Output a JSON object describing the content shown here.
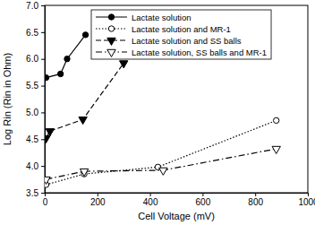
{
  "chart_data": {
    "type": "line",
    "x_label": "Cell Voltage (mV)",
    "y_label": "Log Rin (Rin in Ohm)",
    "xlim": [
      0,
      1000
    ],
    "xticks": [
      0,
      200,
      400,
      600,
      800,
      1000
    ],
    "ylim": [
      3.5,
      7.0
    ],
    "yticks": [
      3.5,
      {
        "value": 4,
        "label": "4.0"
      },
      4.5,
      {
        "value": 5,
        "label": "5.0"
      },
      5.5,
      {
        "value": 6,
        "label": "6.0"
      },
      6.5,
      {
        "value": 7,
        "label": "7.0"
      }
    ],
    "grid": false,
    "legend": "upper center",
    "series": [
      {
        "name": "Lactate solution",
        "color": "#000000",
        "marker": "circle",
        "line_style": "solid",
        "x": [
          5,
          60,
          85,
          155
        ],
        "values": [
          5.65,
          5.72,
          6.0,
          6.45
        ]
      },
      {
        "name": "Lactate solution and MR-1",
        "color": "#000000",
        "marker": "circle-open",
        "line_style": "dotted",
        "x": [
          5,
          150,
          430,
          880
        ],
        "values": [
          3.65,
          3.85,
          3.98,
          4.85
        ]
      },
      {
        "name": "Lactate solution and SS balls",
        "color": "#000000",
        "marker": "triangle-down",
        "line_style": "dashed",
        "x": [
          5,
          20,
          145,
          300
        ],
        "values": [
          4.52,
          4.65,
          4.87,
          5.92
        ]
      },
      {
        "name": "Lactate solution, SS balls and MR-1",
        "color": "#000000",
        "marker": "triangle-down-open",
        "line_style": "dashdot",
        "x": [
          5,
          150,
          450,
          880
        ],
        "values": [
          3.75,
          3.9,
          3.92,
          4.32
        ]
      }
    ]
  }
}
